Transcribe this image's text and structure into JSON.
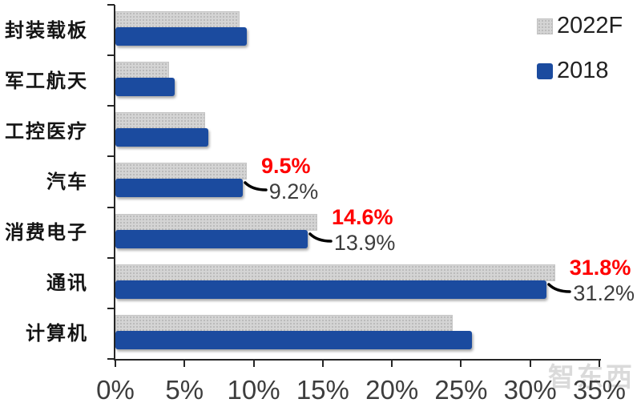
{
  "chart_data": {
    "type": "bar",
    "orientation": "horizontal",
    "categories": [
      "封装载板",
      "军工航天",
      "工控医疗",
      "汽车",
      "消费电子",
      "通讯",
      "计算机"
    ],
    "series": [
      {
        "name": "2022F",
        "color": "#D4D4D4",
        "values": [
          9.0,
          3.9,
          6.5,
          9.5,
          14.6,
          31.8,
          24.4
        ]
      },
      {
        "name": "2018",
        "color": "#1B4B9F",
        "values": [
          9.5,
          4.3,
          6.7,
          9.2,
          13.9,
          31.2,
          25.8
        ]
      }
    ],
    "annotations": [
      {
        "category": "汽车",
        "series": "2022F",
        "text": "9.5%",
        "color": "#FF0000"
      },
      {
        "category": "汽车",
        "series": "2018",
        "text": "9.2%",
        "color": "#3d3d3d"
      },
      {
        "category": "消费电子",
        "series": "2022F",
        "text": "14.6%",
        "color": "#FF0000"
      },
      {
        "category": "消费电子",
        "series": "2018",
        "text": "13.9%",
        "color": "#3d3d3d"
      },
      {
        "category": "通讯",
        "series": "2022F",
        "text": "31.8%",
        "color": "#FF0000"
      },
      {
        "category": "通讯",
        "series": "2018",
        "text": "31.2%",
        "color": "#3d3d3d"
      }
    ],
    "xlim": [
      0,
      35
    ],
    "x_ticks": [
      "0%",
      "5%",
      "10%",
      "15%",
      "20%",
      "25%",
      "30%",
      "35%"
    ],
    "grid": false,
    "legend_position": "top-right"
  },
  "legend": {
    "items": [
      {
        "label": "2022F",
        "color": "#D4D4D4"
      },
      {
        "label": "2018",
        "color": "#1B4B9F"
      }
    ]
  },
  "watermark": {
    "text": "智东西"
  },
  "colors": {
    "bar_2022f": "#D4D4D4",
    "bar_2018": "#1B4B9F",
    "annotation_red": "#FF0000",
    "annotation_dark": "#3d3d3d",
    "axis": "#262626",
    "background": "#ffffff"
  }
}
